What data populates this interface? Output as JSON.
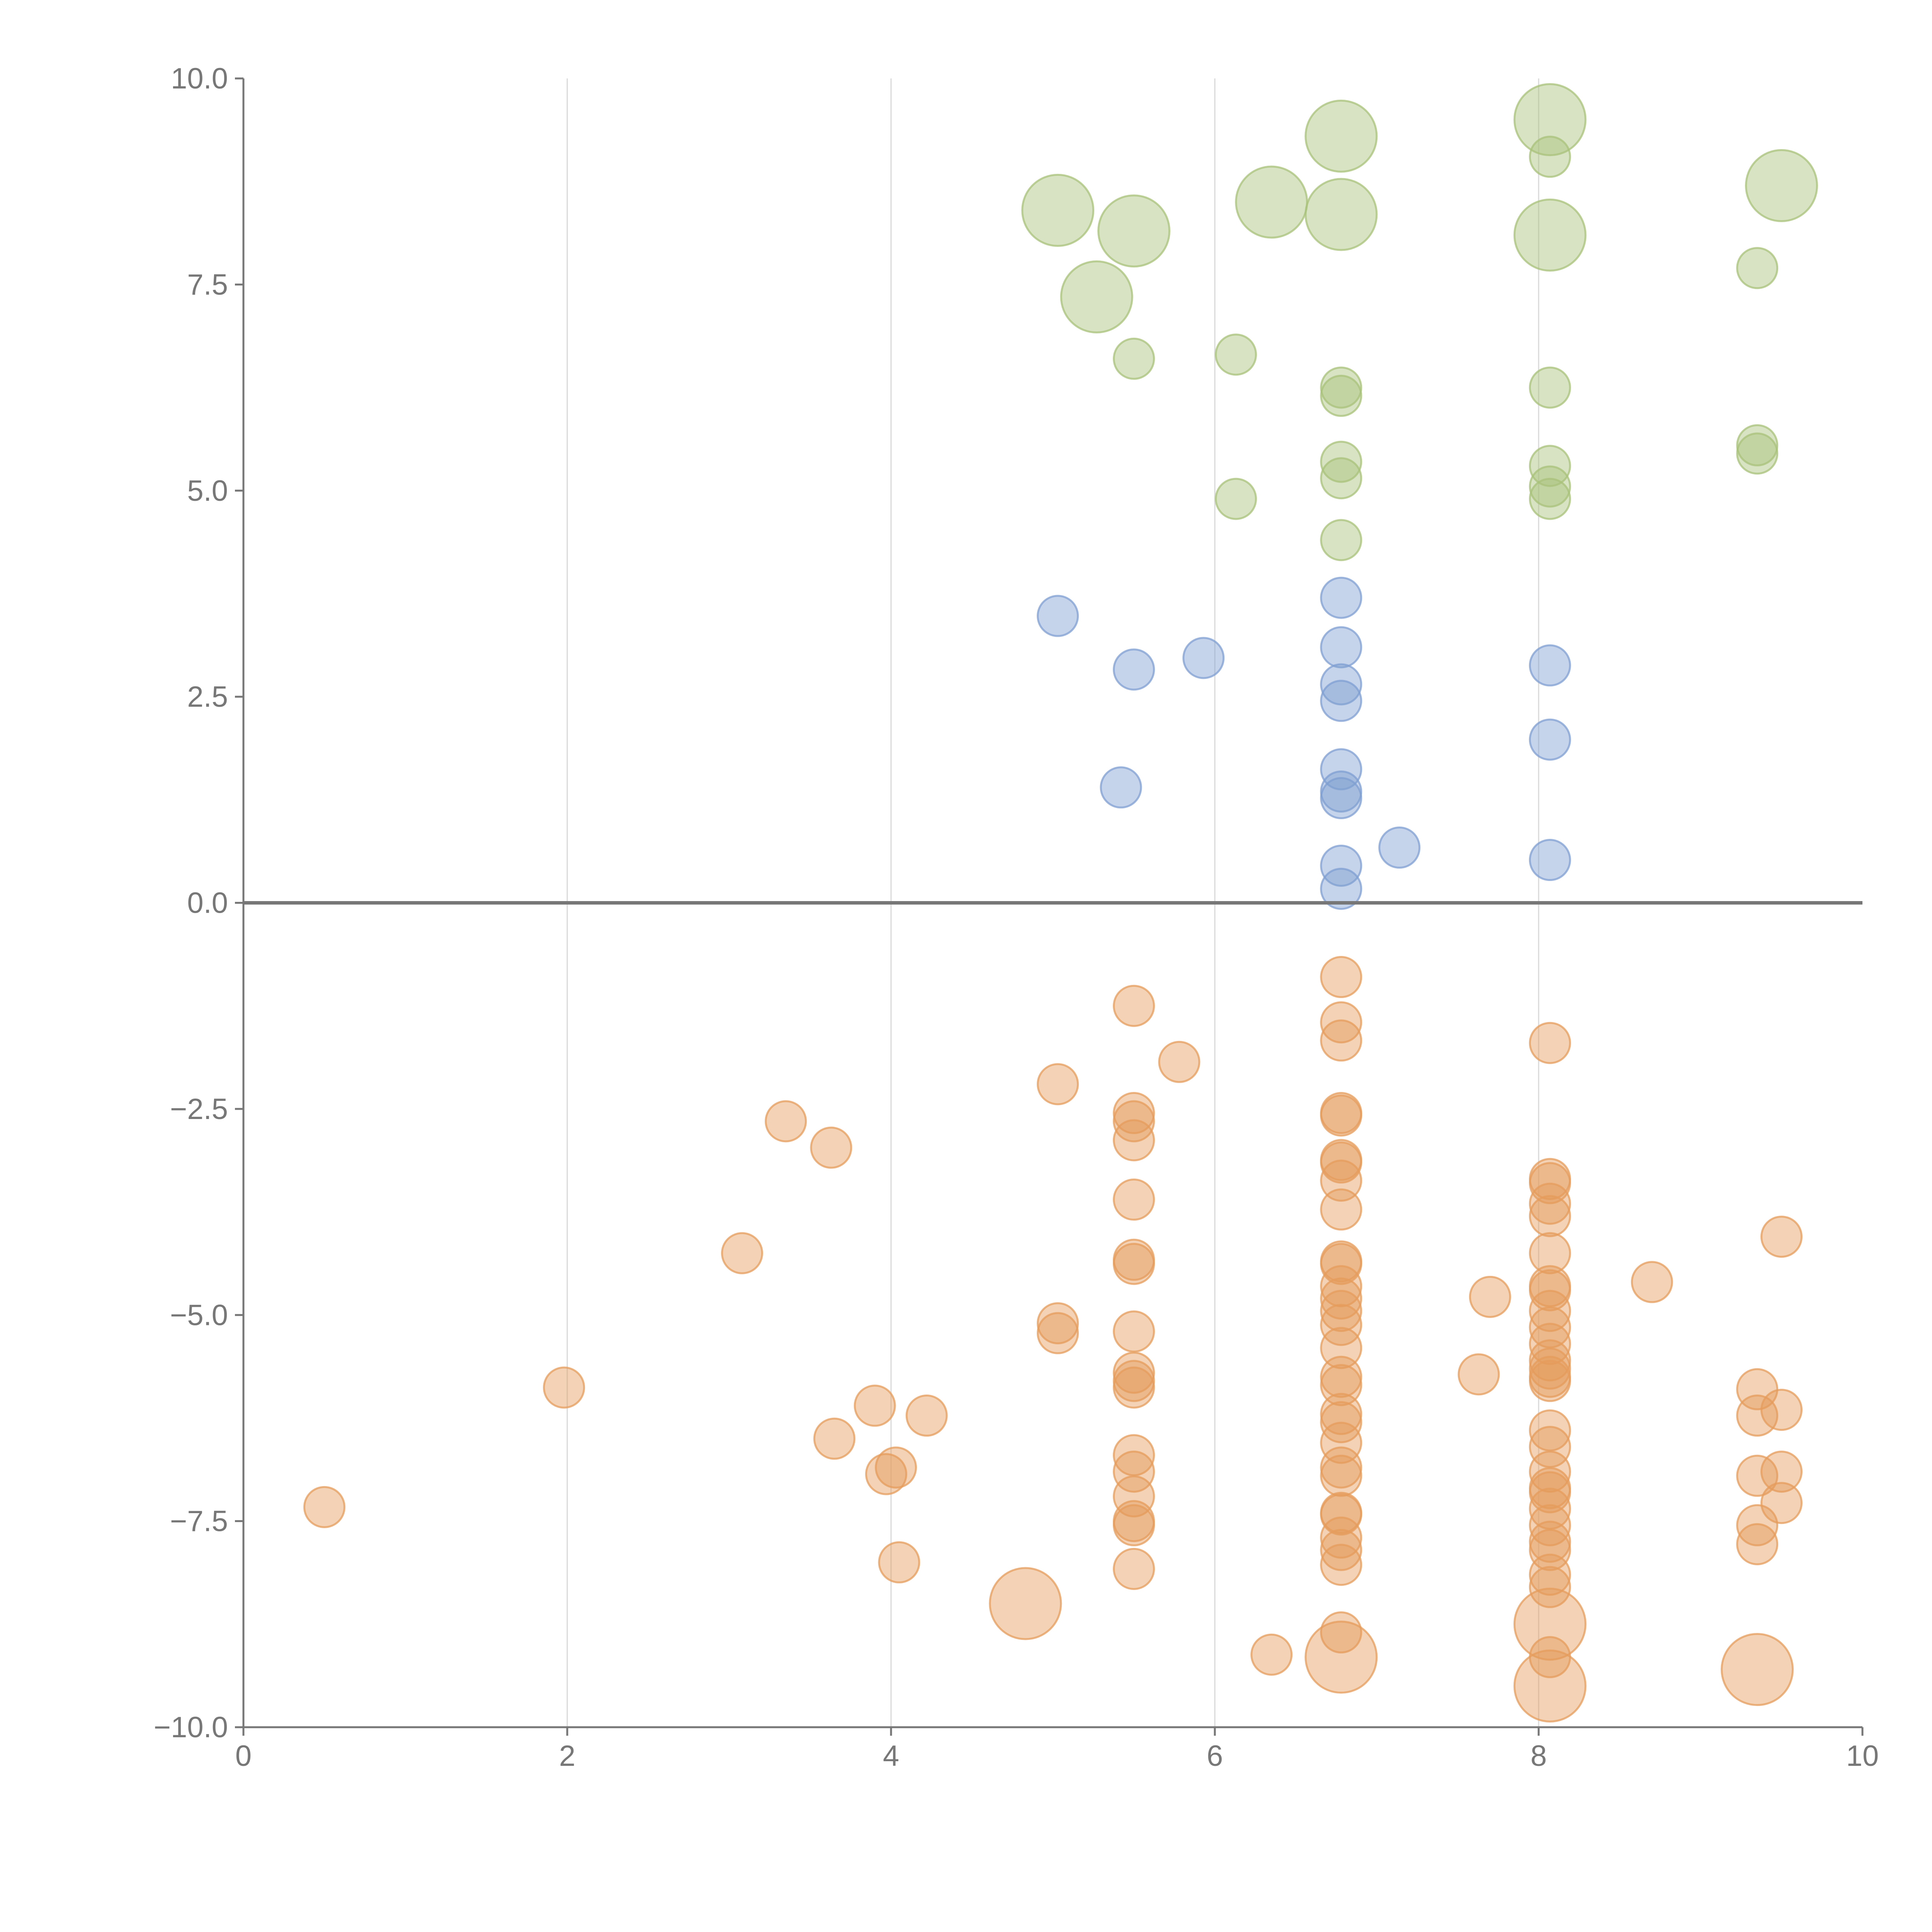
{
  "chart_data": {
    "type": "scatter",
    "title": "",
    "xlabel": "",
    "ylabel": "",
    "xlim": [
      0,
      10
    ],
    "ylim": [
      -10,
      10
    ],
    "grid": "vertical",
    "x_ticks": [
      "0",
      "2",
      "4",
      "6",
      "8",
      "10"
    ],
    "y_ticks": [
      "10.0",
      "7.5",
      "5.0",
      "2.5",
      "0.0",
      "−2.5",
      "−5.0",
      "−7.5",
      "−10.0"
    ],
    "zero_line": true,
    "series": [
      {
        "color": "#a8c27a",
        "points": [
          [
            5.03,
            8.4,
            2
          ],
          [
            5.5,
            8.15,
            2
          ],
          [
            5.27,
            7.35,
            2
          ],
          [
            6.35,
            8.5,
            2
          ],
          [
            6.78,
            9.3,
            2
          ],
          [
            6.78,
            8.35,
            2
          ],
          [
            8.07,
            9.5,
            2
          ],
          [
            8.07,
            8.1,
            2
          ],
          [
            9.5,
            8.7,
            2
          ],
          [
            8.07,
            9.05,
            1
          ],
          [
            9.35,
            7.7,
            1
          ],
          [
            5.5,
            6.6,
            1
          ],
          [
            6.13,
            6.65,
            1
          ],
          [
            6.78,
            6.25,
            1
          ],
          [
            6.78,
            6.15,
            1
          ],
          [
            8.07,
            6.25,
            1
          ],
          [
            6.78,
            5.35,
            1
          ],
          [
            6.78,
            5.15,
            1
          ],
          [
            8.07,
            5.3,
            1
          ],
          [
            8.07,
            5.05,
            1
          ],
          [
            8.07,
            4.9,
            1
          ],
          [
            9.35,
            5.55,
            1
          ],
          [
            9.35,
            5.45,
            1
          ],
          [
            6.13,
            4.9,
            1
          ],
          [
            6.78,
            4.4,
            1
          ]
        ]
      },
      {
        "color": "#7f9fd1",
        "points": [
          [
            5.03,
            3.48,
            1
          ],
          [
            5.5,
            2.83,
            1
          ],
          [
            5.93,
            2.97,
            1
          ],
          [
            6.78,
            3.7,
            1
          ],
          [
            6.78,
            3.1,
            1
          ],
          [
            6.78,
            2.65,
            1
          ],
          [
            6.78,
            2.45,
            1
          ],
          [
            8.07,
            2.88,
            1
          ],
          [
            8.07,
            1.98,
            1
          ],
          [
            5.42,
            1.4,
            1
          ],
          [
            6.78,
            1.62,
            1
          ],
          [
            6.78,
            1.35,
            1
          ],
          [
            6.78,
            1.27,
            1
          ],
          [
            7.14,
            0.67,
            1
          ],
          [
            6.78,
            0.45,
            1
          ],
          [
            6.78,
            0.17,
            1
          ],
          [
            8.07,
            0.52,
            1
          ]
        ]
      },
      {
        "color": "#e59c5c",
        "points": [
          [
            0.5,
            -7.33,
            1
          ],
          [
            1.98,
            -5.88,
            1
          ],
          [
            3.08,
            -4.25,
            1
          ],
          [
            3.35,
            -2.65,
            1
          ],
          [
            3.63,
            -2.97,
            1
          ],
          [
            3.65,
            -6.5,
            1
          ],
          [
            3.9,
            -6.1,
            1
          ],
          [
            3.97,
            -6.93,
            1
          ],
          [
            4.03,
            -6.85,
            1
          ],
          [
            4.05,
            -8.0,
            1
          ],
          [
            4.22,
            -6.22,
            1
          ],
          [
            4.83,
            -8.5,
            2
          ],
          [
            5.03,
            -2.2,
            1
          ],
          [
            5.03,
            -5.1,
            1
          ],
          [
            5.03,
            -5.22,
            1
          ],
          [
            5.5,
            -1.25,
            1
          ],
          [
            5.5,
            -2.55,
            1
          ],
          [
            5.5,
            -2.65,
            1
          ],
          [
            5.5,
            -2.88,
            1
          ],
          [
            5.5,
            -3.6,
            1
          ],
          [
            5.5,
            -4.33,
            1
          ],
          [
            5.5,
            -4.38,
            1
          ],
          [
            5.5,
            -5.2,
            1
          ],
          [
            5.5,
            -5.7,
            1
          ],
          [
            5.5,
            -5.8,
            1
          ],
          [
            5.5,
            -5.88,
            1
          ],
          [
            5.5,
            -6.7,
            1
          ],
          [
            5.5,
            -6.9,
            1
          ],
          [
            5.5,
            -7.2,
            1
          ],
          [
            5.5,
            -7.5,
            1
          ],
          [
            5.5,
            -7.55,
            1
          ],
          [
            5.5,
            -8.08,
            1
          ],
          [
            5.78,
            -1.93,
            1
          ],
          [
            6.35,
            -9.12,
            1
          ],
          [
            6.78,
            -0.9,
            1
          ],
          [
            6.78,
            -1.45,
            1
          ],
          [
            6.78,
            -1.67,
            1
          ],
          [
            6.78,
            -2.55,
            1
          ],
          [
            6.78,
            -2.58,
            1
          ],
          [
            6.78,
            -3.12,
            1
          ],
          [
            6.78,
            -3.15,
            1
          ],
          [
            6.78,
            -3.37,
            1
          ],
          [
            6.78,
            -3.72,
            1
          ],
          [
            6.78,
            -4.35,
            1
          ],
          [
            6.78,
            -4.38,
            1
          ],
          [
            6.78,
            -4.65,
            1
          ],
          [
            6.78,
            -4.8,
            1
          ],
          [
            6.78,
            -4.95,
            1
          ],
          [
            6.78,
            -5.12,
            1
          ],
          [
            6.78,
            -5.4,
            1
          ],
          [
            6.78,
            -5.75,
            1
          ],
          [
            6.78,
            -5.85,
            1
          ],
          [
            6.78,
            -6.2,
            1
          ],
          [
            6.78,
            -6.3,
            1
          ],
          [
            6.78,
            -6.55,
            1
          ],
          [
            6.78,
            -6.85,
            1
          ],
          [
            6.78,
            -6.95,
            1
          ],
          [
            6.78,
            -7.4,
            1
          ],
          [
            6.78,
            -7.42,
            1
          ],
          [
            6.78,
            -7.7,
            1
          ],
          [
            6.78,
            -7.85,
            1
          ],
          [
            6.78,
            -8.03,
            1
          ],
          [
            6.78,
            -8.85,
            1
          ],
          [
            6.78,
            -9.15,
            2
          ],
          [
            7.63,
            -5.72,
            1
          ],
          [
            7.7,
            -4.78,
            1
          ],
          [
            8.07,
            -1.7,
            1
          ],
          [
            8.07,
            -3.35,
            1
          ],
          [
            8.07,
            -3.4,
            1
          ],
          [
            8.07,
            -3.65,
            1
          ],
          [
            8.07,
            -3.8,
            1
          ],
          [
            8.07,
            -4.25,
            1
          ],
          [
            8.07,
            -4.65,
            1
          ],
          [
            8.07,
            -4.7,
            1
          ],
          [
            8.07,
            -4.95,
            1
          ],
          [
            8.07,
            -5.15,
            1
          ],
          [
            8.07,
            -5.35,
            1
          ],
          [
            8.07,
            -5.55,
            1
          ],
          [
            8.07,
            -5.65,
            1
          ],
          [
            8.07,
            -5.75,
            1
          ],
          [
            8.07,
            -5.8,
            1
          ],
          [
            8.07,
            -6.4,
            1
          ],
          [
            8.07,
            -6.6,
            1
          ],
          [
            8.07,
            -6.9,
            1
          ],
          [
            8.07,
            -7.1,
            1
          ],
          [
            8.07,
            -7.15,
            1
          ],
          [
            8.07,
            -7.35,
            1
          ],
          [
            8.07,
            -7.55,
            1
          ],
          [
            8.07,
            -7.75,
            1
          ],
          [
            8.07,
            -7.85,
            1
          ],
          [
            8.07,
            -8.15,
            1
          ],
          [
            8.07,
            -8.3,
            1
          ],
          [
            8.07,
            -8.75,
            2
          ],
          [
            8.07,
            -9.15,
            1
          ],
          [
            8.07,
            -9.5,
            2
          ],
          [
            8.7,
            -4.6,
            1
          ],
          [
            9.35,
            -5.9,
            1
          ],
          [
            9.35,
            -6.22,
            1
          ],
          [
            9.35,
            -6.95,
            1
          ],
          [
            9.35,
            -7.55,
            1
          ],
          [
            9.35,
            -7.78,
            1
          ],
          [
            9.35,
            -9.3,
            2
          ],
          [
            9.5,
            -4.05,
            1
          ],
          [
            9.5,
            -6.15,
            1
          ],
          [
            9.5,
            -6.9,
            1
          ],
          [
            9.5,
            -7.28,
            1
          ]
        ]
      }
    ]
  }
}
